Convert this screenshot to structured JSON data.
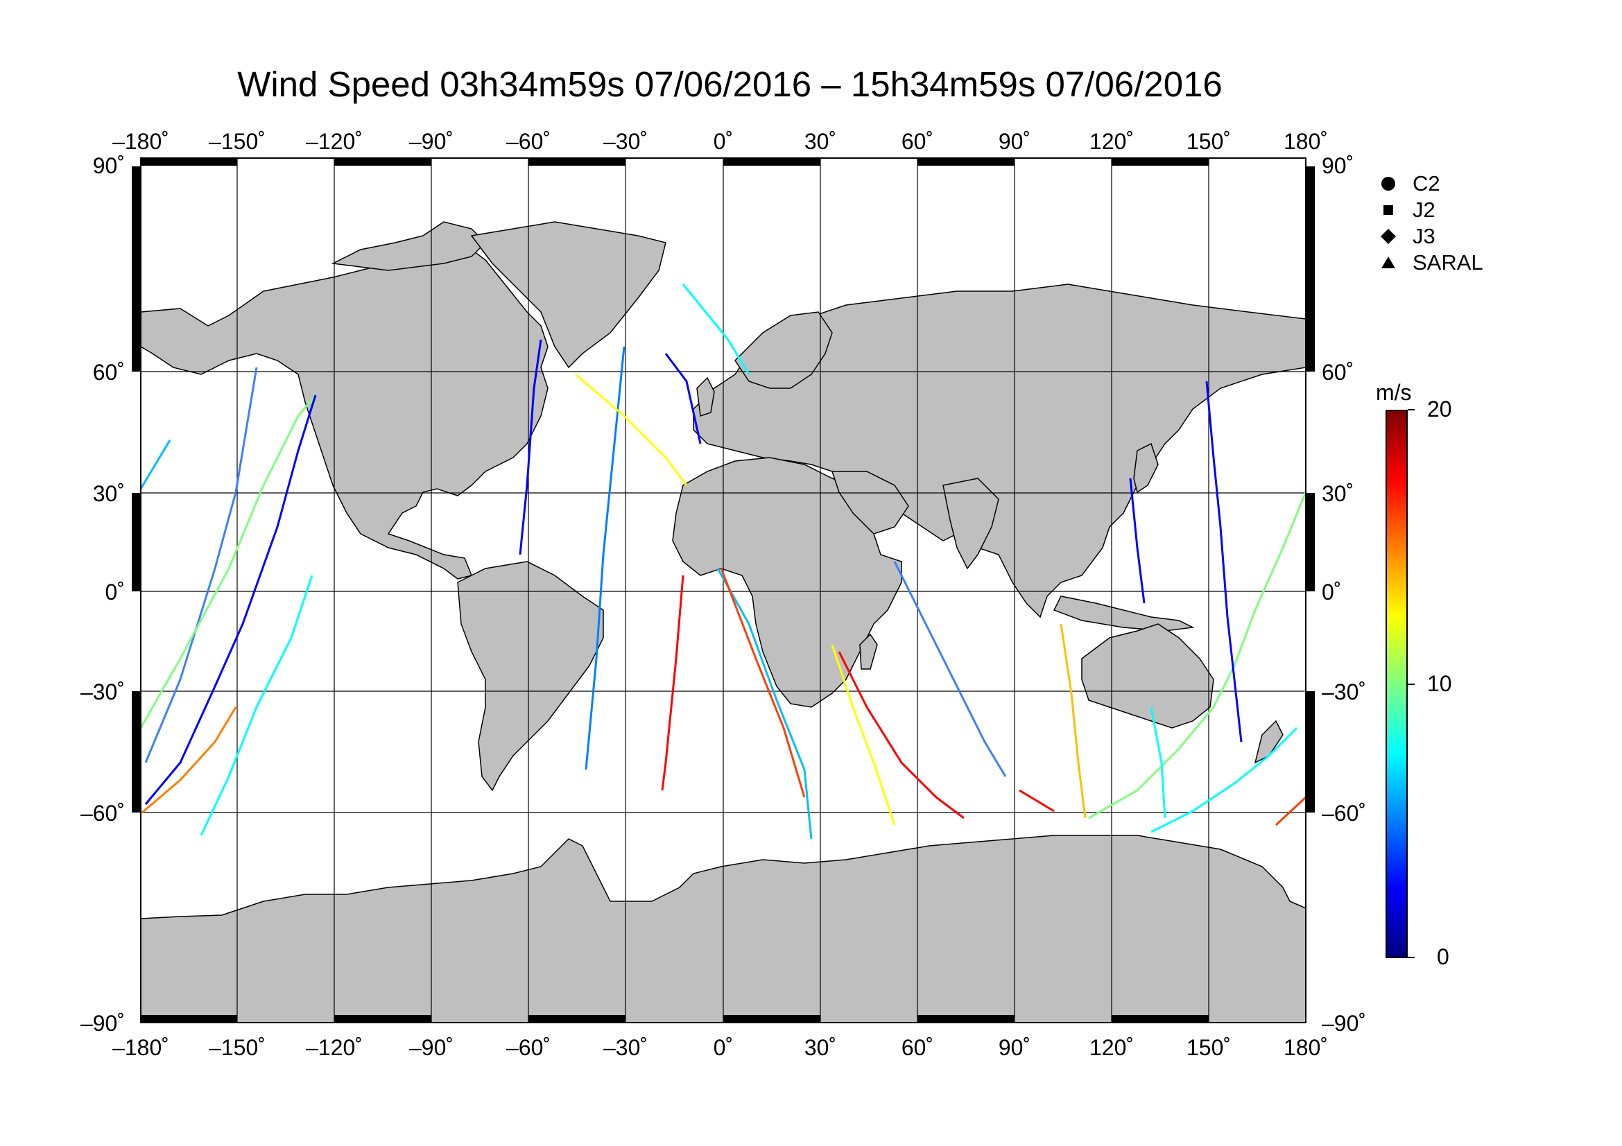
{
  "title": "Wind Speed 03h34m59s 07/06/2016 – 15h34m59s 07/06/2016",
  "lon_ticks": [
    "–180˚",
    "–150˚",
    "–120˚",
    "–90˚",
    "–60˚",
    "–30˚",
    "0˚",
    "30˚",
    "60˚",
    "90˚",
    "120˚",
    "150˚",
    "180˚"
  ],
  "lat_ticks_left": [
    "90˚",
    "60˚",
    "30˚",
    "0˚",
    "–30˚",
    "–60˚",
    "–90˚"
  ],
  "lat_ticks_right": [
    "90˚",
    "60˚",
    "30˚",
    "0˚",
    "–30˚",
    "–60˚",
    "–90˚"
  ],
  "legend": [
    {
      "label": "C2",
      "symbol": "circle-icon"
    },
    {
      "label": "J2",
      "symbol": "square-icon"
    },
    {
      "label": "J3",
      "symbol": "diamond-icon"
    },
    {
      "label": "SARAL",
      "symbol": "triangle-icon"
    }
  ],
  "colorbar": {
    "unit": "m/s",
    "max_label": "20",
    "mid_label": "10",
    "min_label": "0",
    "min": 0,
    "max": 20,
    "colors": [
      "#00007f",
      "#0000ff",
      "#007fff",
      "#00ffff",
      "#7fff7f",
      "#ffff00",
      "#ff7f00",
      "#ff0000",
      "#7f0000"
    ]
  },
  "colors": {
    "land": "#bfbfbf",
    "ocean": "#ffffff",
    "grid": "#000000"
  },
  "map_extent": {
    "lon": [
      -180,
      180
    ],
    "lat": [
      -90,
      90
    ]
  }
}
